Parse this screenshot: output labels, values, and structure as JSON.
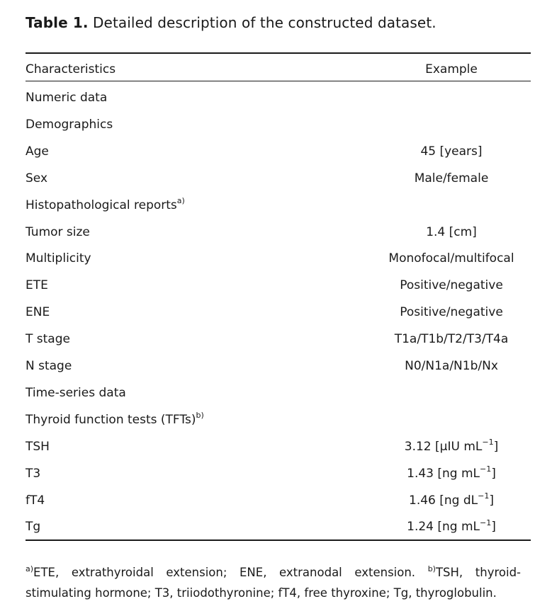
{
  "caption": {
    "label": "Table 1.",
    "text": "Detailed description of the constructed dataset."
  },
  "header": {
    "col1": "Characteristics",
    "col2": "Example"
  },
  "rows": [
    {
      "name": "Numeric data",
      "example": ""
    },
    {
      "name": "Demographics",
      "example": ""
    },
    {
      "name": "Age",
      "example": "45 [years]"
    },
    {
      "name": "Sex",
      "example": "Male/female"
    },
    {
      "name": "Histopathological reports",
      "sup": "a)",
      "example": ""
    },
    {
      "name": "Tumor size",
      "example": "1.4 [cm]"
    },
    {
      "name": "Multiplicity",
      "example": "Monofocal/multifocal"
    },
    {
      "name": "ETE",
      "example": "Positive/negative"
    },
    {
      "name": "ENE",
      "example": "Positive/negative"
    },
    {
      "name": "T stage",
      "example": "T1a/T1b/T2/T3/T4a"
    },
    {
      "name": "N stage",
      "example": "N0/N1a/N1b/Nx"
    },
    {
      "name": "Time-series data",
      "example": ""
    },
    {
      "name": "Thyroid function tests (TFTs)",
      "sup": "b)",
      "example": ""
    },
    {
      "name": "TSH",
      "example": "3.12 [μIU mL",
      "example_sup": "−1",
      "example_end": "]"
    },
    {
      "name": "T3",
      "example": "1.43 [ng mL",
      "example_sup": "−1",
      "example_end": "]"
    },
    {
      "name": "fT4",
      "example": "1.46 [ng dL",
      "example_sup": "−1",
      "example_end": "]"
    },
    {
      "name": "Tg",
      "example": "1.24 [ng mL",
      "example_sup": "−1",
      "example_end": "]"
    }
  ],
  "footnotes": {
    "a_mark": "a)",
    "a_text": "ETE, extrathyroidal extension; ENE, extranodal extension.",
    "b_mark": "b)",
    "b_text_line1": "TSH, thyroid-",
    "b_text_line2": "stimulating hormone; T3, triiodothyronine; fT4, free thyroxine; Tg, thyroglobulin."
  }
}
